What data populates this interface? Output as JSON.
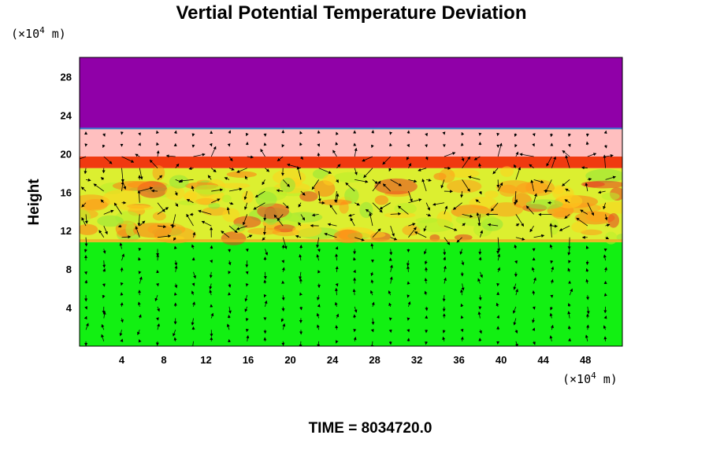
{
  "chart_data": {
    "type": "heatmap",
    "title": "Vertial Potential Temperature Deviation",
    "ylabel": "Height",
    "xunit": {
      "prefix": "(×10",
      "exp": "4",
      "suffix": " m)"
    },
    "yunit": {
      "prefix": "(×10",
      "exp": "4",
      "suffix": " m)"
    },
    "footer": "TIME = 8034720.0",
    "xlim": [
      0,
      51.5
    ],
    "ylim": [
      0,
      30
    ],
    "xticks": [
      "4",
      "8",
      "12",
      "16",
      "20",
      "24",
      "28",
      "32",
      "36",
      "40",
      "44",
      "48"
    ],
    "xtick_values": [
      4,
      8,
      12,
      16,
      20,
      24,
      28,
      32,
      36,
      40,
      44,
      48
    ],
    "yticks": [
      "4",
      "8",
      "12",
      "16",
      "20",
      "24",
      "28"
    ],
    "ytick_values": [
      4,
      8,
      12,
      16,
      20,
      24,
      28
    ],
    "layers": [
      {
        "y0": 0,
        "y1": 10.8,
        "color": "#12f012"
      },
      {
        "y0": 10.8,
        "y1": 18.5,
        "color": "#dcef30"
      },
      {
        "y0": 18.5,
        "y1": 19.7,
        "color": "#f03a10"
      },
      {
        "y0": 19.7,
        "y1": 22.6,
        "color": "#ffbfbf"
      },
      {
        "y0": 22.6,
        "y1": 30,
        "color": "#9000a8"
      }
    ],
    "grid": false,
    "vectors": true
  }
}
